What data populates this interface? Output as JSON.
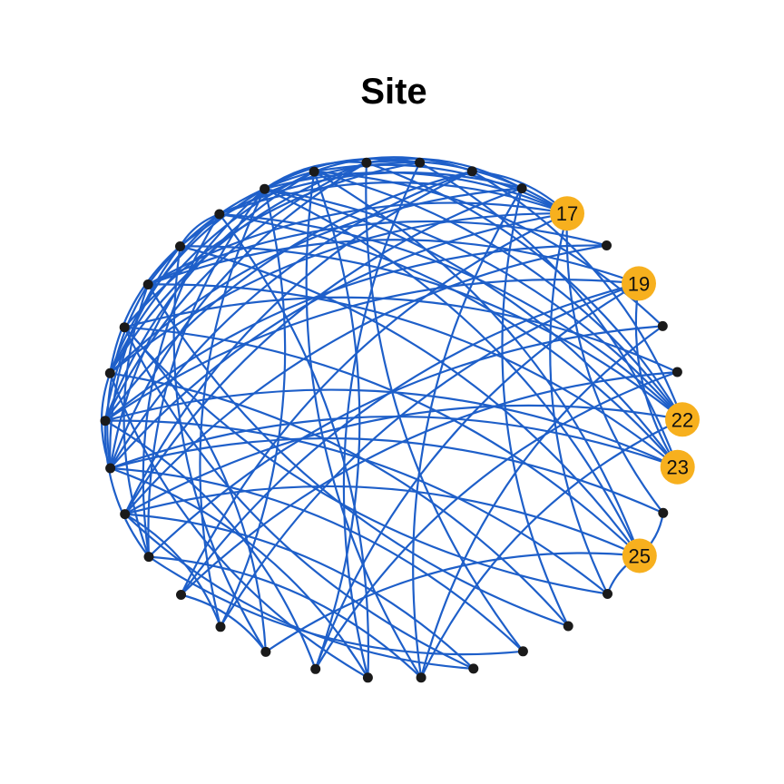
{
  "title": "Site",
  "colors": {
    "edge": "#1e5fc9",
    "node": "#1a1a1a",
    "highlight": "#f7b01e",
    "background": "#ffffff"
  },
  "nodes": [
    {
      "id": 1,
      "label": "",
      "highlighted": false
    },
    {
      "id": 2,
      "label": "",
      "highlighted": false
    },
    {
      "id": 3,
      "label": "",
      "highlighted": false
    },
    {
      "id": 4,
      "label": "",
      "highlighted": false
    },
    {
      "id": 5,
      "label": "",
      "highlighted": false
    },
    {
      "id": 6,
      "label": "",
      "highlighted": false
    },
    {
      "id": 7,
      "label": "",
      "highlighted": false
    },
    {
      "id": 8,
      "label": "",
      "highlighted": false
    },
    {
      "id": 9,
      "label": "",
      "highlighted": false
    },
    {
      "id": 10,
      "label": "",
      "highlighted": false
    },
    {
      "id": 11,
      "label": "",
      "highlighted": false
    },
    {
      "id": 12,
      "label": "",
      "highlighted": false
    },
    {
      "id": 13,
      "label": "",
      "highlighted": false
    },
    {
      "id": 14,
      "label": "",
      "highlighted": false
    },
    {
      "id": 15,
      "label": "",
      "highlighted": false
    },
    {
      "id": 16,
      "label": "",
      "highlighted": false
    },
    {
      "id": 17,
      "label": "17",
      "highlighted": true
    },
    {
      "id": 18,
      "label": "",
      "highlighted": false
    },
    {
      "id": 19,
      "label": "19",
      "highlighted": true
    },
    {
      "id": 20,
      "label": "",
      "highlighted": false
    },
    {
      "id": 21,
      "label": "",
      "highlighted": false
    },
    {
      "id": 22,
      "label": "22",
      "highlighted": true
    },
    {
      "id": 23,
      "label": "23",
      "highlighted": true
    },
    {
      "id": 24,
      "label": "",
      "highlighted": false
    },
    {
      "id": 25,
      "label": "25",
      "highlighted": true
    },
    {
      "id": 26,
      "label": "",
      "highlighted": false
    },
    {
      "id": 27,
      "label": "",
      "highlighted": false
    },
    {
      "id": 28,
      "label": "",
      "highlighted": false
    },
    {
      "id": 29,
      "label": "",
      "highlighted": false
    },
    {
      "id": 30,
      "label": "",
      "highlighted": false
    },
    {
      "id": 31,
      "label": "",
      "highlighted": false
    },
    {
      "id": 32,
      "label": "",
      "highlighted": false
    },
    {
      "id": 33,
      "label": "",
      "highlighted": false
    },
    {
      "id": 34,
      "label": "",
      "highlighted": false
    }
  ],
  "edges": [
    [
      17,
      6
    ],
    [
      17,
      8
    ],
    [
      17,
      10
    ],
    [
      17,
      11
    ],
    [
      17,
      12
    ],
    [
      17,
      13
    ],
    [
      17,
      15
    ],
    [
      17,
      24
    ],
    [
      17,
      26
    ],
    [
      17,
      4
    ],
    [
      17,
      1
    ],
    [
      19,
      5
    ],
    [
      19,
      8
    ],
    [
      19,
      32
    ],
    [
      19,
      34
    ],
    [
      19,
      1
    ],
    [
      19,
      23
    ],
    [
      22,
      3
    ],
    [
      22,
      9
    ],
    [
      22,
      10
    ],
    [
      22,
      11
    ],
    [
      22,
      12
    ],
    [
      22,
      13
    ],
    [
      22,
      15
    ],
    [
      22,
      30
    ],
    [
      23,
      5
    ],
    [
      23,
      8
    ],
    [
      23,
      10
    ],
    [
      23,
      11
    ],
    [
      23,
      14
    ],
    [
      23,
      4
    ],
    [
      25,
      7
    ],
    [
      25,
      9
    ],
    [
      25,
      11
    ],
    [
      25,
      12
    ],
    [
      25,
      24
    ],
    [
      25,
      26
    ],
    [
      25,
      33
    ],
    [
      25,
      3
    ],
    [
      16,
      6
    ],
    [
      16,
      10
    ],
    [
      16,
      13
    ],
    [
      16,
      3
    ],
    [
      16,
      27
    ],
    [
      16,
      30
    ],
    [
      14,
      7
    ],
    [
      14,
      9
    ],
    [
      14,
      11
    ],
    [
      14,
      31
    ],
    [
      15,
      4
    ],
    [
      15,
      12
    ],
    [
      15,
      3
    ],
    [
      15,
      5
    ],
    [
      13,
      4
    ],
    [
      13,
      5
    ],
    [
      13,
      6
    ],
    [
      13,
      11
    ],
    [
      13,
      28
    ],
    [
      12,
      5
    ],
    [
      12,
      6
    ],
    [
      12,
      8
    ],
    [
      12,
      30
    ],
    [
      11,
      2
    ],
    [
      11,
      4
    ],
    [
      11,
      6
    ],
    [
      11,
      34
    ],
    [
      10,
      2
    ],
    [
      10,
      5
    ],
    [
      10,
      9
    ],
    [
      9,
      4
    ],
    [
      9,
      6
    ],
    [
      9,
      33
    ],
    [
      8,
      2
    ],
    [
      8,
      4
    ],
    [
      8,
      27
    ],
    [
      7,
      29
    ],
    [
      7,
      26
    ],
    [
      6,
      4
    ],
    [
      6,
      31
    ],
    [
      5,
      2
    ],
    [
      3,
      29
    ],
    [
      2,
      28
    ],
    [
      18,
      3
    ],
    [
      18,
      5
    ],
    [
      18,
      8
    ],
    [
      20,
      2
    ],
    [
      20,
      12
    ],
    [
      20,
      30
    ],
    [
      21,
      1
    ],
    [
      21,
      7
    ],
    [
      21,
      32
    ],
    [
      24,
      4
    ],
    [
      26,
      5
    ],
    [
      27,
      6
    ],
    [
      28,
      4
    ],
    [
      29,
      3
    ],
    [
      30,
      2
    ],
    [
      31,
      4
    ],
    [
      31,
      10
    ],
    [
      32,
      5
    ],
    [
      32,
      12
    ],
    [
      33,
      1
    ],
    [
      33,
      7
    ],
    [
      34,
      3
    ],
    [
      34,
      11
    ]
  ]
}
